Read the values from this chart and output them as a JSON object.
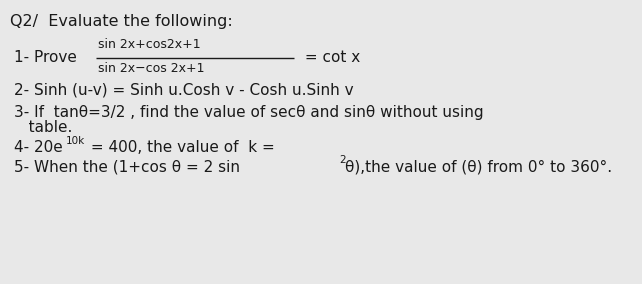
{
  "bg_color": "#e8e8e8",
  "title": "Q2/  Evaluate the following:",
  "title_fontsize": 11.5,
  "title_bold": false,
  "text_color": "#1a1a1a",
  "fraction_label": "1- Prove",
  "fraction_num": "sin 2x+cos2x+1",
  "fraction_den": "sin 2x−cos 2x+1",
  "fraction_suffix": " = cot x",
  "line2": "2- Sinh (u-v) = Sinh u.Cosh v - Cosh u.Sinh v",
  "line3a": "3- If  tanθ=3/2 , find the value of secθ and sinθ without using",
  "line3b": "   table.",
  "line4_prefix": "4- 20e",
  "line4_super": "10k",
  "line4_suffix": " = 400, the value of  k =",
  "line5_prefix": "5- When the (1+cos θ = 2 sin",
  "line5_super": "2",
  "line5_suffix": "θ),the value of (θ) from 0° to 360°.",
  "main_fontsize": 11.0,
  "small_fontsize": 9.0,
  "super_fontsize": 7.5
}
